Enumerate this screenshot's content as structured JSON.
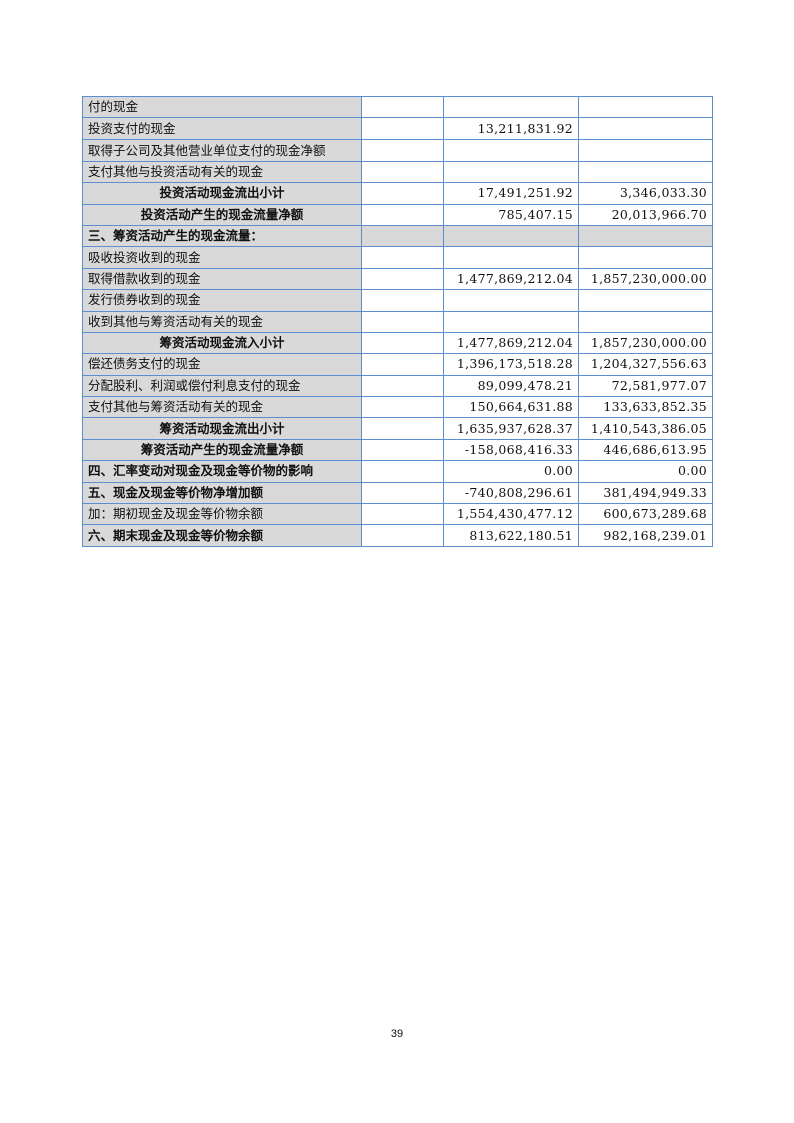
{
  "rows": [
    {
      "label": "付的现金",
      "current": "",
      "prior": "",
      "style": "normal"
    },
    {
      "label": "投资支付的现金",
      "current": "13,211,831.92",
      "prior": "",
      "style": "normal"
    },
    {
      "label": "取得子公司及其他营业单位支付的现金净额",
      "current": "",
      "prior": "",
      "style": "wrap"
    },
    {
      "label": "支付其他与投资活动有关的现金",
      "current": "",
      "prior": "",
      "style": "normal"
    },
    {
      "label": "投资活动现金流出小计",
      "current": "17,491,251.92",
      "prior": "3,346,033.30",
      "style": "subtotal"
    },
    {
      "label": "投资活动产生的现金流量净额",
      "current": "785,407.15",
      "prior": "20,013,966.70",
      "style": "subtotal"
    },
    {
      "label": "三、筹资活动产生的现金流量：",
      "current": "",
      "prior": "",
      "style": "section"
    },
    {
      "label": "吸收投资收到的现金",
      "current": "",
      "prior": "",
      "style": "normal"
    },
    {
      "label": "取得借款收到的现金",
      "current": "1,477,869,212.04",
      "prior": "1,857,230,000.00",
      "style": "normal"
    },
    {
      "label": "发行债券收到的现金",
      "current": "",
      "prior": "",
      "style": "normal"
    },
    {
      "label": "收到其他与筹资活动有关的现金",
      "current": "",
      "prior": "",
      "style": "normal"
    },
    {
      "label": "筹资活动现金流入小计",
      "current": "1,477,869,212.04",
      "prior": "1,857,230,000.00",
      "style": "subtotal"
    },
    {
      "label": "偿还债务支付的现金",
      "current": "1,396,173,518.28",
      "prior": "1,204,327,556.63",
      "style": "normal"
    },
    {
      "label": "分配股利、利润或偿付利息支付的现金",
      "current": "89,099,478.21",
      "prior": "72,581,977.07",
      "style": "normal"
    },
    {
      "label": "支付其他与筹资活动有关的现金",
      "current": "150,664,631.88",
      "prior": "133,633,852.35",
      "style": "normal"
    },
    {
      "label": "筹资活动现金流出小计",
      "current": "1,635,937,628.37",
      "prior": "1,410,543,386.05",
      "style": "subtotal"
    },
    {
      "label": "筹资活动产生的现金流量净额",
      "current": "-158,068,416.33",
      "prior": "446,686,613.95",
      "style": "subtotal"
    },
    {
      "label": "四、汇率变动对现金及现金等价物的影响",
      "current": "0.00",
      "prior": "0.00",
      "style": "bold"
    },
    {
      "label": "五、现金及现金等价物净增加额",
      "current": "-740,808,296.61",
      "prior": "381,494,949.33",
      "style": "bold"
    },
    {
      "label": "加：期初现金及现金等价物余额",
      "current": "1,554,430,477.12",
      "prior": "600,673,289.68",
      "style": "normal"
    },
    {
      "label": "六、期末现金及现金等价物余额",
      "current": "813,622,180.51",
      "prior": "982,168,239.01",
      "style": "bold"
    }
  ],
  "page_number": "39",
  "colors": {
    "border": "#5b8fd0",
    "label_bg": "#d9d9d9"
  }
}
